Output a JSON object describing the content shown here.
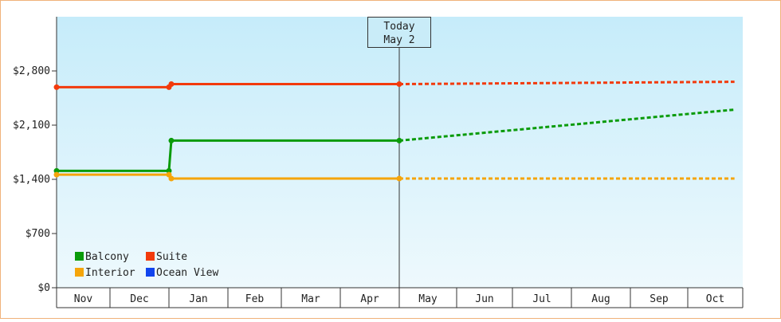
{
  "chart_data": {
    "type": "line",
    "title": "",
    "xlabel": "",
    "ylabel": "",
    "months": [
      "Nov",
      "Dec",
      "Jan",
      "Feb",
      "Mar",
      "Apr",
      "May",
      "Jun",
      "Jul",
      "Aug",
      "Sep",
      "Oct"
    ],
    "ylim": [
      0,
      3500
    ],
    "yticks": [
      0,
      700,
      1400,
      2100,
      2800
    ],
    "ytick_labels": [
      "$0",
      "$700",
      "$1,400",
      "$2,100",
      "$2,800"
    ],
    "today": {
      "label": "Today",
      "date": "May 2",
      "x": 6.0
    },
    "grid": false,
    "legend_placement": "bottom-left",
    "series": [
      {
        "name": "Balcony",
        "color": "#0a9b0a",
        "actual": [
          [
            0,
            1510
          ],
          [
            2,
            1510
          ],
          [
            2.04,
            1900
          ],
          [
            6.0,
            1900
          ]
        ],
        "forecast": [
          [
            6.0,
            1900
          ],
          [
            11.85,
            2300
          ]
        ]
      },
      {
        "name": "Suite",
        "color": "#f23a0c",
        "actual": [
          [
            0,
            2590
          ],
          [
            2,
            2590
          ],
          [
            2.04,
            2630
          ],
          [
            6.0,
            2630
          ]
        ],
        "forecast": [
          [
            6.0,
            2630
          ],
          [
            11.85,
            2660
          ]
        ]
      },
      {
        "name": "Interior",
        "color": "#f5a50a",
        "actual": [
          [
            0,
            1460
          ],
          [
            2,
            1460
          ],
          [
            2.04,
            1410
          ],
          [
            6.0,
            1410
          ]
        ],
        "forecast": [
          [
            6.0,
            1410
          ],
          [
            11.85,
            1410
          ]
        ]
      },
      {
        "name": "Ocean View",
        "color": "#1144ee",
        "actual": [],
        "forecast": []
      }
    ]
  }
}
